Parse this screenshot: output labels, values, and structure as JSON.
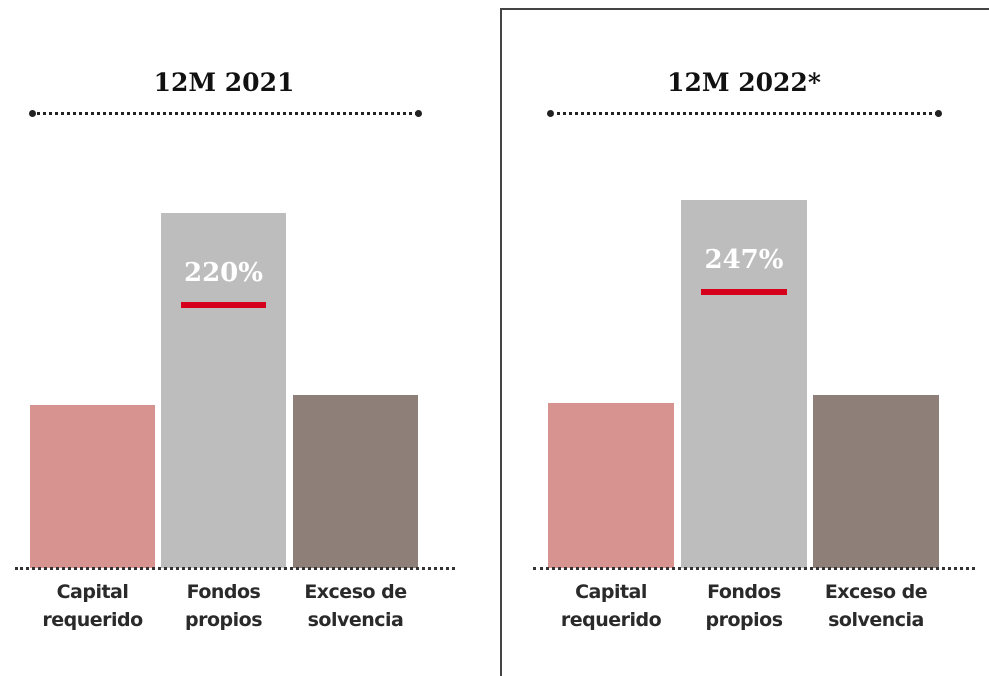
{
  "chart_data": [
    {
      "type": "bar",
      "title": "12M 2021",
      "categories": [
        "Capital requerido",
        "Fondos propios",
        "Exceso de solvencia"
      ],
      "values": [
        101,
        220,
        107
      ],
      "value_labels": [
        null,
        "220%",
        null
      ],
      "colors": [
        "#d6938f",
        "#bdbdbd",
        "#8e8078"
      ]
    },
    {
      "type": "bar",
      "title": "12M 2022*",
      "categories": [
        "Capital requerido",
        "Fondos propios",
        "Exceso de solvencia"
      ],
      "values": [
        111,
        247,
        116
      ],
      "value_labels": [
        null,
        "247%",
        null
      ],
      "colors": [
        "#d6938f",
        "#bdbdbd",
        "#8e8078"
      ]
    }
  ]
}
